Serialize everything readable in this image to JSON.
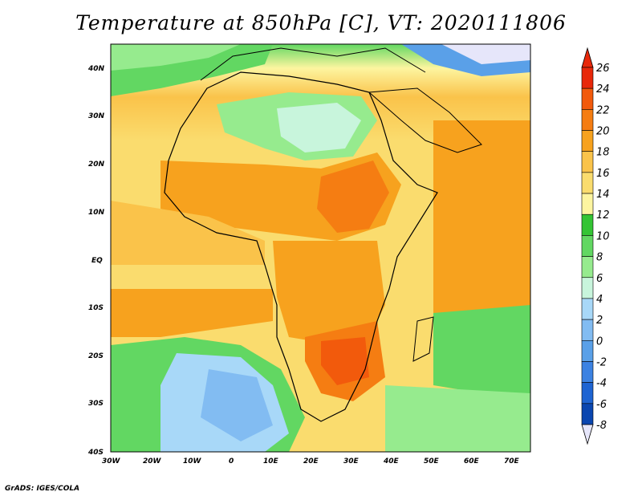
{
  "title": "Temperature at 850hPa [C], VT: 2020111806",
  "credit": "GrADS: IGES/COLA",
  "map": {
    "lat_ticks": [
      "40N",
      "30N",
      "20N",
      "10N",
      "EQ",
      "10S",
      "20S",
      "30S",
      "40S"
    ],
    "lon_ticks": [
      "30W",
      "20W",
      "10W",
      "0",
      "10E",
      "20E",
      "30E",
      "40E",
      "50E",
      "60E",
      "70E"
    ],
    "lat_range": [
      -40,
      45
    ],
    "lon_range": [
      -30,
      76
    ]
  },
  "colorbar": {
    "labels": [
      "26",
      "24",
      "22",
      "20",
      "18",
      "16",
      "14",
      "12",
      "10",
      "8",
      "6",
      "4",
      "2",
      "0",
      "-2",
      "-4",
      "-6",
      "-8"
    ],
    "colors": [
      "#e8280a",
      "#f25a0c",
      "#f57d12",
      "#f7a21e",
      "#fac34a",
      "#fadc6e",
      "#fdf5a0",
      "#34c434",
      "#62d762",
      "#96eb8e",
      "#c8f5dc",
      "#a8d8f8",
      "#82bcf2",
      "#5aa0e8",
      "#3c82e2",
      "#1e64d2",
      "#0a46b0",
      "#0a1e78",
      "#e6e6fa"
    ]
  }
}
